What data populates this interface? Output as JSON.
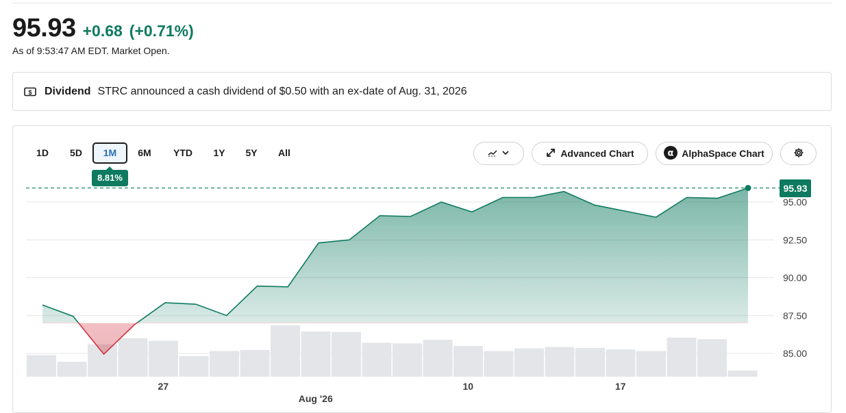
{
  "quote": {
    "price": "95.93",
    "change": "+0.68",
    "change_pct": "(+0.71%)",
    "as_of": "As of 9:53:47 AM EDT. Market Open."
  },
  "dividend": {
    "title": "Dividend",
    "text": "STRC announced a cash dividend of $0.50 with an ex-date of Aug. 31, 2026",
    "icon": "dollar-bill-icon"
  },
  "range_tabs": [
    {
      "label": "1D",
      "active": false
    },
    {
      "label": "5D",
      "active": false
    },
    {
      "label": "1M",
      "active": true
    },
    {
      "label": "6M",
      "active": false
    },
    {
      "label": "YTD",
      "active": false
    },
    {
      "label": "1Y",
      "active": false
    },
    {
      "label": "5Y",
      "active": false
    },
    {
      "label": "All",
      "active": false
    }
  ],
  "range_badge": "8.81%",
  "toolbar": {
    "chart_type_icon": "chart-type-icon",
    "advanced_chart_label": "Advanced Chart",
    "alphaspace_chart_label": "AlphaSpace Chart",
    "settings_icon": "gear-icon"
  },
  "colors": {
    "up": "#0e7a5f",
    "down": "#d0313f",
    "volume": "#e3e5e8"
  },
  "chart_data": {
    "type": "area",
    "title": "",
    "y_ticks": [
      "95.00",
      "92.50",
      "90.00",
      "87.50",
      "85.00"
    ],
    "y_tick_values": [
      95.0,
      92.5,
      90.0,
      87.5,
      85.0
    ],
    "ylim": [
      83.5,
      96.0
    ],
    "x_ticks": [
      {
        "label": "27",
        "index": 4
      },
      {
        "label": "10",
        "index": 14
      },
      {
        "label": "17",
        "index": 19
      }
    ],
    "x_month_label": "Aug '26",
    "x_month_index": 9,
    "baseline": 87.0,
    "last_price": "95.93",
    "last_value": 95.93,
    "series": [
      {
        "values": [
          88.2,
          87.45,
          84.95,
          86.9,
          88.35,
          88.25,
          87.5,
          89.45,
          89.4,
          92.3,
          92.5,
          94.1,
          94.05,
          95.0,
          94.35,
          95.3,
          95.3,
          95.7,
          94.8,
          94.4,
          94.0,
          95.3,
          95.25,
          95.93
        ]
      }
    ],
    "volume": [
      0.42,
      0.29,
      0.63,
      0.75,
      0.7,
      0.4,
      0.5,
      0.52,
      1.0,
      0.88,
      0.87,
      0.66,
      0.65,
      0.72,
      0.6,
      0.5,
      0.55,
      0.58,
      0.56,
      0.53,
      0.5,
      0.76,
      0.73,
      0.12
    ]
  }
}
